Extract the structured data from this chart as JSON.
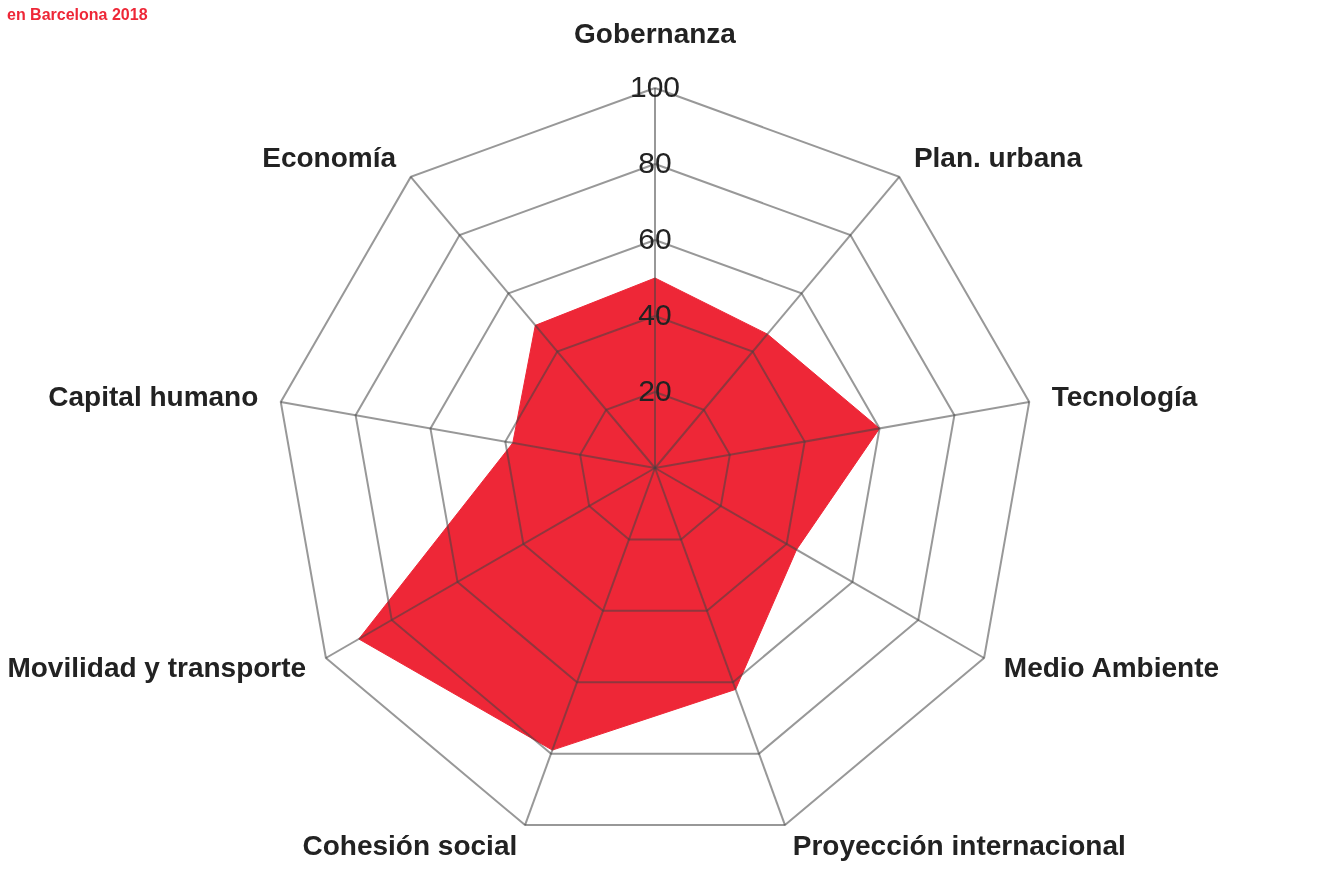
{
  "chart_data": {
    "type": "radar",
    "title": "en Barcelona 2018",
    "categories": [
      "Gobernanza",
      "Plan. urbana",
      "Tecnología",
      "Medio Ambiente",
      "Proyección internacional",
      "Cohesión social",
      "Movilidad y transporte",
      "Capital humano",
      "Economía"
    ],
    "series": [
      {
        "color": "#ee2737",
        "values": [
          50,
          46,
          60,
          43,
          62,
          79,
          90,
          38,
          49
        ]
      }
    ],
    "ylim": [
      0,
      100
    ],
    "yticks": [
      20,
      40,
      60,
      80,
      100
    ],
    "grid": true
  }
}
